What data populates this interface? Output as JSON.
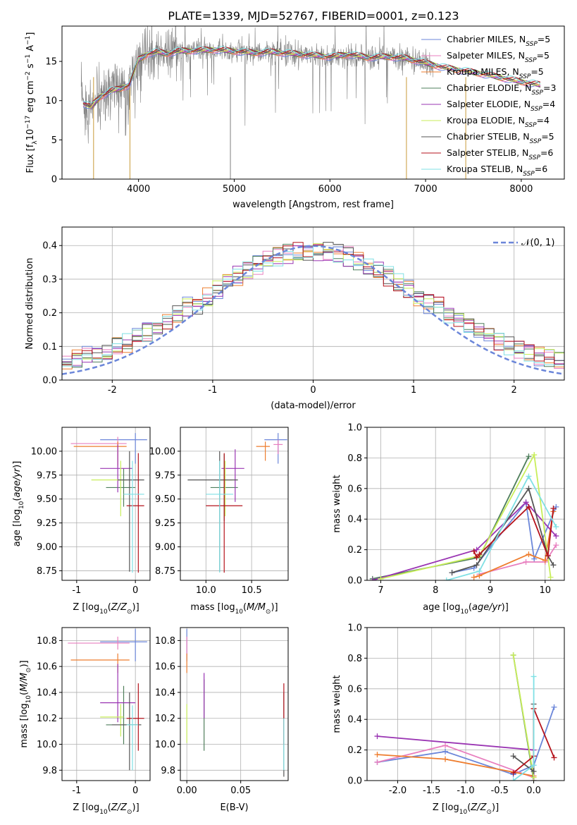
{
  "title": "PLATE=1339, MJD=52767, FIBERID=0001, z=0.123",
  "palette": {
    "Chabrier MILES": "#6b86d9",
    "Salpeter MILES": "#e87fbf",
    "Kroupa MILES": "#ee7d2e",
    "Chabrier ELODIE": "#4f7f5c",
    "Salpeter ELODIE": "#9a35b3",
    "Kroupa ELODIE": "#c8ee5a",
    "Chabrier STELIB": "#555555",
    "Salpeter STELIB": "#b5131c",
    "Kroupa STELIB": "#7fe0e4",
    "data": "#808080",
    "grid": "#b0b0b0"
  },
  "chart_data": [
    {
      "type": "line",
      "title": "PLATE=1339, MJD=52767, FIBERID=0001, z=0.123",
      "xlabel": "wavelength [Angstrom, rest frame]",
      "ylabel": "Flux [f_λ 10^-17 erg cm^-2 s^-1 A^-1]",
      "xlim": [
        3200,
        8450
      ],
      "ylim": [
        0,
        19.5
      ],
      "xticks": [
        4000,
        5000,
        6000,
        7000,
        8000
      ],
      "yticks": [
        0,
        5,
        10,
        15
      ],
      "grid": false,
      "legend_position": "right",
      "legend": [
        "Chabrier MILES, N_SSP=5",
        "Salpeter MILES, N_SSP=5",
        "Kroupa MILES, N_SSP=5",
        "Chabrier ELODIE, N_SSP=3",
        "Salpeter ELODIE, N_SSP=4",
        "Kroupa ELODIE, N_SSP=4",
        "Chabrier STELIB, N_SSP=5",
        "Salpeter STELIB, N_SSP=6",
        "Kroupa STELIB, N_SSP=6"
      ],
      "model_x": [
        3400,
        3500,
        3600,
        3700,
        3800,
        3900,
        4000,
        4100,
        4200,
        4300,
        4400,
        4600,
        4800,
        5000,
        5200,
        5400,
        5600,
        5800,
        6000,
        6200,
        6400,
        6600,
        6800,
        7000,
        7200,
        7400,
        7600,
        7800,
        8000,
        8200
      ],
      "model_y": [
        9.8,
        9.2,
        10.5,
        11.2,
        11.5,
        12.0,
        15.2,
        16.0,
        16.2,
        16.0,
        16.3,
        16.4,
        16.5,
        16.3,
        16.1,
        16.2,
        16.0,
        15.8,
        15.6,
        15.9,
        15.5,
        15.6,
        15.4,
        14.8,
        14.2,
        13.8,
        13.4,
        12.9,
        12.4,
        12.0
      ]
    },
    {
      "type": "bar",
      "xlabel": "(data-model)/error",
      "ylabel": "Normed distribution",
      "xlim": [
        -2.5,
        2.5
      ],
      "ylim": [
        0,
        0.455
      ],
      "xticks": [
        -2,
        -1,
        0,
        1,
        2
      ],
      "yticks": [
        0.0,
        0.1,
        0.2,
        0.3,
        0.4
      ],
      "grid": true,
      "legend_position": "top-right",
      "curve_label": "𝒩(0, 1)",
      "bins": 50
    },
    {
      "type": "scatter",
      "xlabel": "Z [log10(Z/Z⊙)]",
      "ylabel": "age  [log10(age/yr)]",
      "xlim": [
        -1.25,
        0.25
      ],
      "ylim": [
        8.65,
        10.25
      ],
      "xticks": [
        -1,
        0
      ],
      "yticks": [
        8.75,
        9.0,
        9.25,
        9.5,
        9.75,
        10.0
      ],
      "grid": true,
      "points": [
        {
          "x": 0.0,
          "y": 10.12,
          "xerr": [
            0.6,
            0.2
          ],
          "yerr": [
            0.25,
            0.07
          ]
        },
        {
          "x": -0.3,
          "y": 10.08,
          "xerr": [
            0.8,
            0.15
          ],
          "yerr": [
            0.25,
            0.07
          ]
        },
        {
          "x": -0.3,
          "y": 10.05,
          "xerr": [
            0.75,
            0.15
          ],
          "yerr": [
            0.2,
            0.05
          ]
        },
        {
          "x": -0.2,
          "y": 9.62,
          "xerr": [
            0.3,
            0.2
          ],
          "yerr": [
            0.2,
            0.2
          ]
        },
        {
          "x": -0.3,
          "y": 9.82,
          "xerr": [
            0.3,
            0.25
          ],
          "yerr": [
            0.25,
            0.25
          ]
        },
        {
          "x": -0.25,
          "y": 9.7,
          "xerr": [
            0.5,
            0.1
          ],
          "yerr": [
            0.38,
            0.2
          ]
        },
        {
          "x": -0.1,
          "y": 9.7,
          "xerr": [
            0.2,
            0.25
          ],
          "yerr": [
            0.96,
            0.3
          ]
        },
        {
          "x": 0.05,
          "y": 9.43,
          "xerr": [
            0.2,
            0.1
          ],
          "yerr": [
            0.7,
            0.55
          ]
        },
        {
          "x": -0.05,
          "y": 9.55,
          "xerr": [
            0.15,
            0.2
          ],
          "yerr": [
            0.82,
            0.35
          ]
        }
      ]
    },
    {
      "type": "scatter",
      "xlabel": "mass [log10(M/M⊙)]",
      "ylabel": "",
      "xlim": [
        9.72,
        10.9
      ],
      "ylim": [
        8.65,
        10.25
      ],
      "xticks": [
        10.0,
        10.5
      ],
      "yticks": [
        8.75,
        9.0,
        9.25,
        9.5,
        9.75,
        10.0
      ],
      "grid": true,
      "points": [
        {
          "x": 10.79,
          "y": 10.12,
          "xerr": [
            0.15,
            0.1
          ],
          "yerr": [
            0.25,
            0.07
          ]
        },
        {
          "x": 10.79,
          "y": 10.07,
          "xerr": [
            0.05,
            0.05
          ],
          "yerr": [
            0.1,
            0.05
          ]
        },
        {
          "x": 10.65,
          "y": 10.05,
          "xerr": [
            0.1,
            0.05
          ],
          "yerr": [
            0.15,
            0.05
          ]
        },
        {
          "x": 10.2,
          "y": 9.62,
          "xerr": [
            0.15,
            0.15
          ],
          "yerr": [
            0.35,
            0.35
          ]
        },
        {
          "x": 10.32,
          "y": 9.82,
          "xerr": [
            0.15,
            0.1
          ],
          "yerr": [
            0.35,
            0.2
          ]
        },
        {
          "x": 10.21,
          "y": 9.7,
          "xerr": [
            0.08,
            0.08
          ],
          "yerr": [
            0.38,
            0.2
          ]
        },
        {
          "x": 10.15,
          "y": 9.7,
          "xerr": [
            0.35,
            0.2
          ],
          "yerr": [
            0.96,
            0.3
          ]
        },
        {
          "x": 10.2,
          "y": 9.43,
          "xerr": [
            0.2,
            0.2
          ],
          "yerr": [
            0.7,
            0.55
          ]
        },
        {
          "x": 10.15,
          "y": 9.55,
          "xerr": [
            0.15,
            0.15
          ],
          "yerr": [
            0.82,
            0.35
          ]
        }
      ]
    },
    {
      "type": "line",
      "xlabel": "age  [log10(age/yr)]",
      "ylabel": "mass weight",
      "xlim": [
        6.75,
        10.35
      ],
      "ylim": [
        0,
        1.0
      ],
      "xticks": [
        7,
        8,
        9,
        10
      ],
      "yticks": [
        0.0,
        0.2,
        0.4,
        0.6,
        0.8,
        1.0
      ],
      "grid": true,
      "series": [
        {
          "x": [
            8.3,
            8.7,
            9.65,
            9.8,
            10.2
          ],
          "y": [
            0.05,
            0.08,
            0.51,
            0.14,
            0.48
          ]
        },
        {
          "x": [
            8.8,
            9.65,
            10.0,
            10.2
          ],
          "y": [
            0.04,
            0.12,
            0.12,
            0.23
          ]
        },
        {
          "x": [
            8.7,
            8.8,
            9.7,
            10.0,
            10.15
          ],
          "y": [
            0.02,
            0.03,
            0.17,
            0.13,
            0.45
          ]
        },
        {
          "x": [
            6.85,
            8.8,
            9.7
          ],
          "y": [
            0.01,
            0.15,
            0.81
          ]
        },
        {
          "x": [
            6.85,
            8.75,
            9.65,
            10.2
          ],
          "y": [
            0.0,
            0.2,
            0.51,
            0.29
          ]
        },
        {
          "x": [
            7.0,
            8.8,
            9.8,
            10.1
          ],
          "y": [
            0.01,
            0.16,
            0.82,
            0.02
          ]
        },
        {
          "x": [
            8.3,
            8.75,
            9.7,
            10.05,
            10.15
          ],
          "y": [
            0.05,
            0.1,
            0.6,
            0.16,
            0.1
          ]
        },
        {
          "x": [
            8.7,
            8.75,
            8.8,
            9.7,
            10.05,
            10.15
          ],
          "y": [
            0.19,
            0.15,
            0.17,
            0.48,
            0.16,
            0.47
          ]
        },
        {
          "x": [
            8.2,
            8.8,
            9.7,
            10.2
          ],
          "y": [
            0.0,
            0.06,
            0.68,
            0.35
          ]
        }
      ]
    },
    {
      "type": "scatter",
      "xlabel": "Z [log10(Z/Z⊙)]",
      "ylabel": "mass [log10(M/M⊙)]",
      "xlim": [
        -1.25,
        0.25
      ],
      "ylim": [
        9.72,
        10.9
      ],
      "xticks": [
        -1,
        0
      ],
      "yticks": [
        9.8,
        10.0,
        10.2,
        10.4,
        10.6,
        10.8
      ],
      "grid": true,
      "points": [
        {
          "x": 0.0,
          "y": 10.79,
          "xerr": [
            0.6,
            0.2
          ],
          "yerr": [
            0.15,
            0.1
          ]
        },
        {
          "x": -0.3,
          "y": 10.78,
          "xerr": [
            0.85,
            0.2
          ],
          "yerr": [
            0.05,
            0.05
          ]
        },
        {
          "x": -0.3,
          "y": 10.65,
          "xerr": [
            0.8,
            0.2
          ],
          "yerr": [
            0.1,
            0.05
          ]
        },
        {
          "x": -0.2,
          "y": 10.15,
          "xerr": [
            0.3,
            0.3
          ],
          "yerr": [
            0.15,
            0.3
          ]
        },
        {
          "x": -0.3,
          "y": 10.32,
          "xerr": [
            0.3,
            0.3
          ],
          "yerr": [
            0.15,
            0.3
          ]
        },
        {
          "x": -0.25,
          "y": 10.21,
          "xerr": [
            0.35,
            0.05
          ],
          "yerr": [
            0.15,
            0.1
          ]
        },
        {
          "x": -0.1,
          "y": 10.15,
          "xerr": [
            0.3,
            0.2
          ],
          "yerr": [
            0.35,
            0.25
          ]
        },
        {
          "x": 0.05,
          "y": 10.2,
          "xerr": [
            0.2,
            0.1
          ],
          "yerr": [
            0.25,
            0.27
          ]
        },
        {
          "x": -0.05,
          "y": 10.15,
          "xerr": [
            0.1,
            0.1
          ],
          "yerr": [
            0.35,
            0.15
          ]
        }
      ]
    },
    {
      "type": "scatter",
      "xlabel": "E(B-V)",
      "ylabel": "",
      "xlim": [
        -0.006,
        0.094
      ],
      "ylim": [
        9.72,
        10.9
      ],
      "xticks": [
        0.0,
        0.05
      ],
      "yticks": [
        9.8,
        10.0,
        10.2,
        10.4,
        10.6,
        10.8
      ],
      "grid": true,
      "points": [
        {
          "x": 0.0,
          "y": 10.79,
          "xerr": [
            0,
            0
          ],
          "yerr": [
            0.15,
            0.1
          ]
        },
        {
          "x": 0.0,
          "y": 10.78,
          "xerr": [
            0,
            0
          ],
          "yerr": [
            0.1,
            0.05
          ]
        },
        {
          "x": 0.0,
          "y": 10.65,
          "xerr": [
            0,
            0
          ],
          "yerr": [
            0.1,
            0.05
          ]
        },
        {
          "x": 0.016,
          "y": 10.2,
          "xerr": [
            0,
            0
          ],
          "yerr": [
            0.25,
            0.3
          ]
        },
        {
          "x": 0.016,
          "y": 10.35,
          "xerr": [
            0,
            0
          ],
          "yerr": [
            0.15,
            0.2
          ]
        },
        {
          "x": 0.0,
          "y": 10.21,
          "xerr": [
            0,
            0
          ],
          "yerr": [
            0.2,
            0.1
          ]
        },
        {
          "x": 0.09,
          "y": 10.15,
          "xerr": [
            0,
            0
          ],
          "yerr": [
            0.4,
            0.25
          ]
        },
        {
          "x": 0.09,
          "y": 10.3,
          "xerr": [
            0,
            0
          ],
          "yerr": [
            0.3,
            0.17
          ]
        },
        {
          "x": 0.09,
          "y": 10.0,
          "xerr": [
            0,
            0
          ],
          "yerr": [
            0.2,
            0.2
          ]
        }
      ]
    },
    {
      "type": "line",
      "xlabel": "Z [log10(Z/Z⊙)]",
      "ylabel": "mass weight",
      "xlim": [
        -2.45,
        0.45
      ],
      "ylim": [
        0,
        1.0
      ],
      "xticks": [
        -2.0,
        -1.5,
        -1.0,
        -0.5,
        0.0
      ],
      "yticks": [
        0.0,
        0.2,
        0.4,
        0.6,
        0.8,
        1.0
      ],
      "grid": true,
      "series": [
        {
          "x": [
            -2.3,
            -1.3,
            -0.3,
            0.0,
            0.3
          ],
          "y": [
            0.12,
            0.19,
            0.04,
            0.1,
            0.48
          ]
        },
        {
          "x": [
            -2.3,
            -1.3,
            0.0,
            0.0
          ],
          "y": [
            0.12,
            0.23,
            0.02,
            0.1
          ]
        },
        {
          "x": [
            -2.3,
            -1.3,
            0.0,
            0.0
          ],
          "y": [
            0.17,
            0.14,
            0.03,
            0.47
          ]
        },
        {
          "x": [
            -0.3,
            0.0
          ],
          "y": [
            0.82,
            0.0
          ]
        },
        {
          "x": [
            -2.3,
            0.0,
            0.0
          ],
          "y": [
            0.29,
            0.2,
            0.0
          ]
        },
        {
          "x": [
            -0.3,
            0.0
          ],
          "y": [
            0.82,
            0.02
          ]
        },
        {
          "x": [
            -0.3,
            0.0,
            0.0
          ],
          "y": [
            0.16,
            0.06,
            0.5
          ]
        },
        {
          "x": [
            -0.3,
            0.0,
            0.0,
            0.3
          ],
          "y": [
            0.05,
            0.16,
            0.47,
            0.15
          ]
        },
        {
          "x": [
            -0.3,
            0.0,
            0.0
          ],
          "y": [
            0.0,
            0.1,
            0.68
          ]
        }
      ]
    }
  ]
}
